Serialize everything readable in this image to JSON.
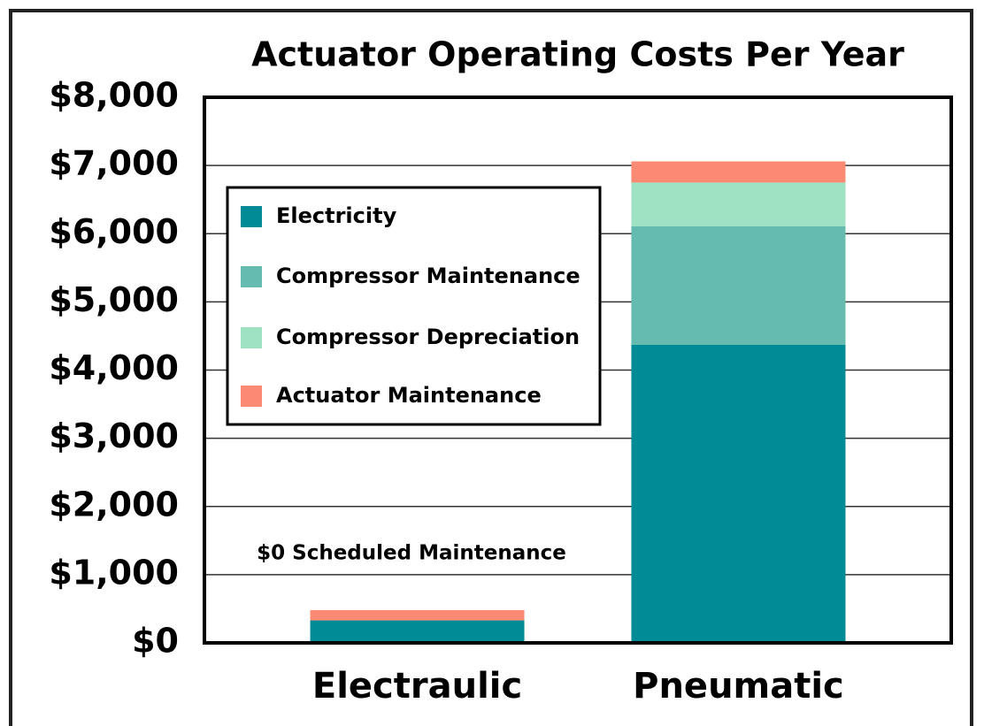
{
  "chart_data": {
    "type": "stacked_bar",
    "title": "Actuator Operating Costs Per Year",
    "categories": [
      "Electraulic",
      "Pneumatic"
    ],
    "series": [
      {
        "name": "Electricity",
        "color": "#008b96",
        "values": [
          330,
          4370
        ]
      },
      {
        "name": "Compressor Maintenance",
        "color": "#66bbb0",
        "values": [
          0,
          1740
        ]
      },
      {
        "name": "Compressor Depreciation",
        "color": "#9de3c3",
        "values": [
          0,
          640
        ]
      },
      {
        "name": "Actuator Maintenance",
        "color": "#fa8a74",
        "values": [
          150,
          310
        ]
      }
    ],
    "annotation": "$0 Scheduled Maintenance",
    "ylim": [
      0,
      8000
    ],
    "yticks": [
      {
        "value": 0,
        "label": "$0"
      },
      {
        "value": 1000,
        "label": "$1,000"
      },
      {
        "value": 2000,
        "label": "$2,000"
      },
      {
        "value": 3000,
        "label": "$3,000"
      },
      {
        "value": 4000,
        "label": "$4,000"
      },
      {
        "value": 5000,
        "label": "$5,000"
      },
      {
        "value": 6000,
        "label": "$6,000"
      },
      {
        "value": 7000,
        "label": "$7,000"
      },
      {
        "value": 8000,
        "label": "$8,000"
      }
    ],
    "grid": true,
    "legend": "upper left"
  }
}
